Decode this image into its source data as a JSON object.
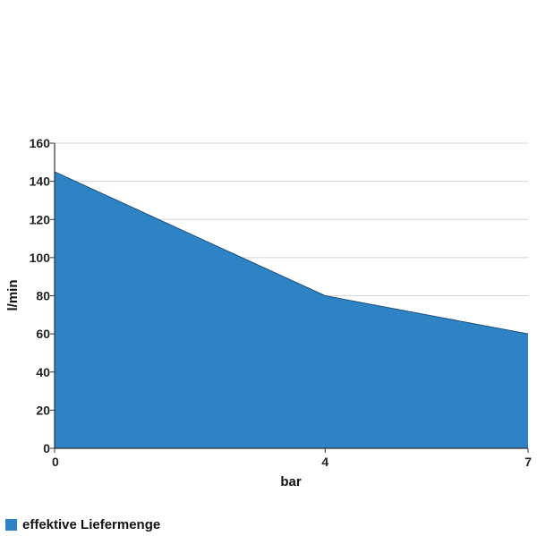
{
  "chart_data": {
    "type": "area",
    "x": [
      0,
      4,
      7
    ],
    "xticks": [
      "0",
      "4",
      "7"
    ],
    "xlim": [
      0,
      7
    ],
    "xlabel": "bar",
    "ylabel": "l/min",
    "ylim": [
      0,
      160
    ],
    "yticks": [
      0,
      20,
      40,
      60,
      80,
      100,
      120,
      140,
      160
    ],
    "grid": true,
    "legend_position": "bottom-left",
    "series": [
      {
        "name": "effektive Liefermenge",
        "values": [
          145,
          80,
          60
        ],
        "color": "#2e83c5"
      }
    ]
  }
}
